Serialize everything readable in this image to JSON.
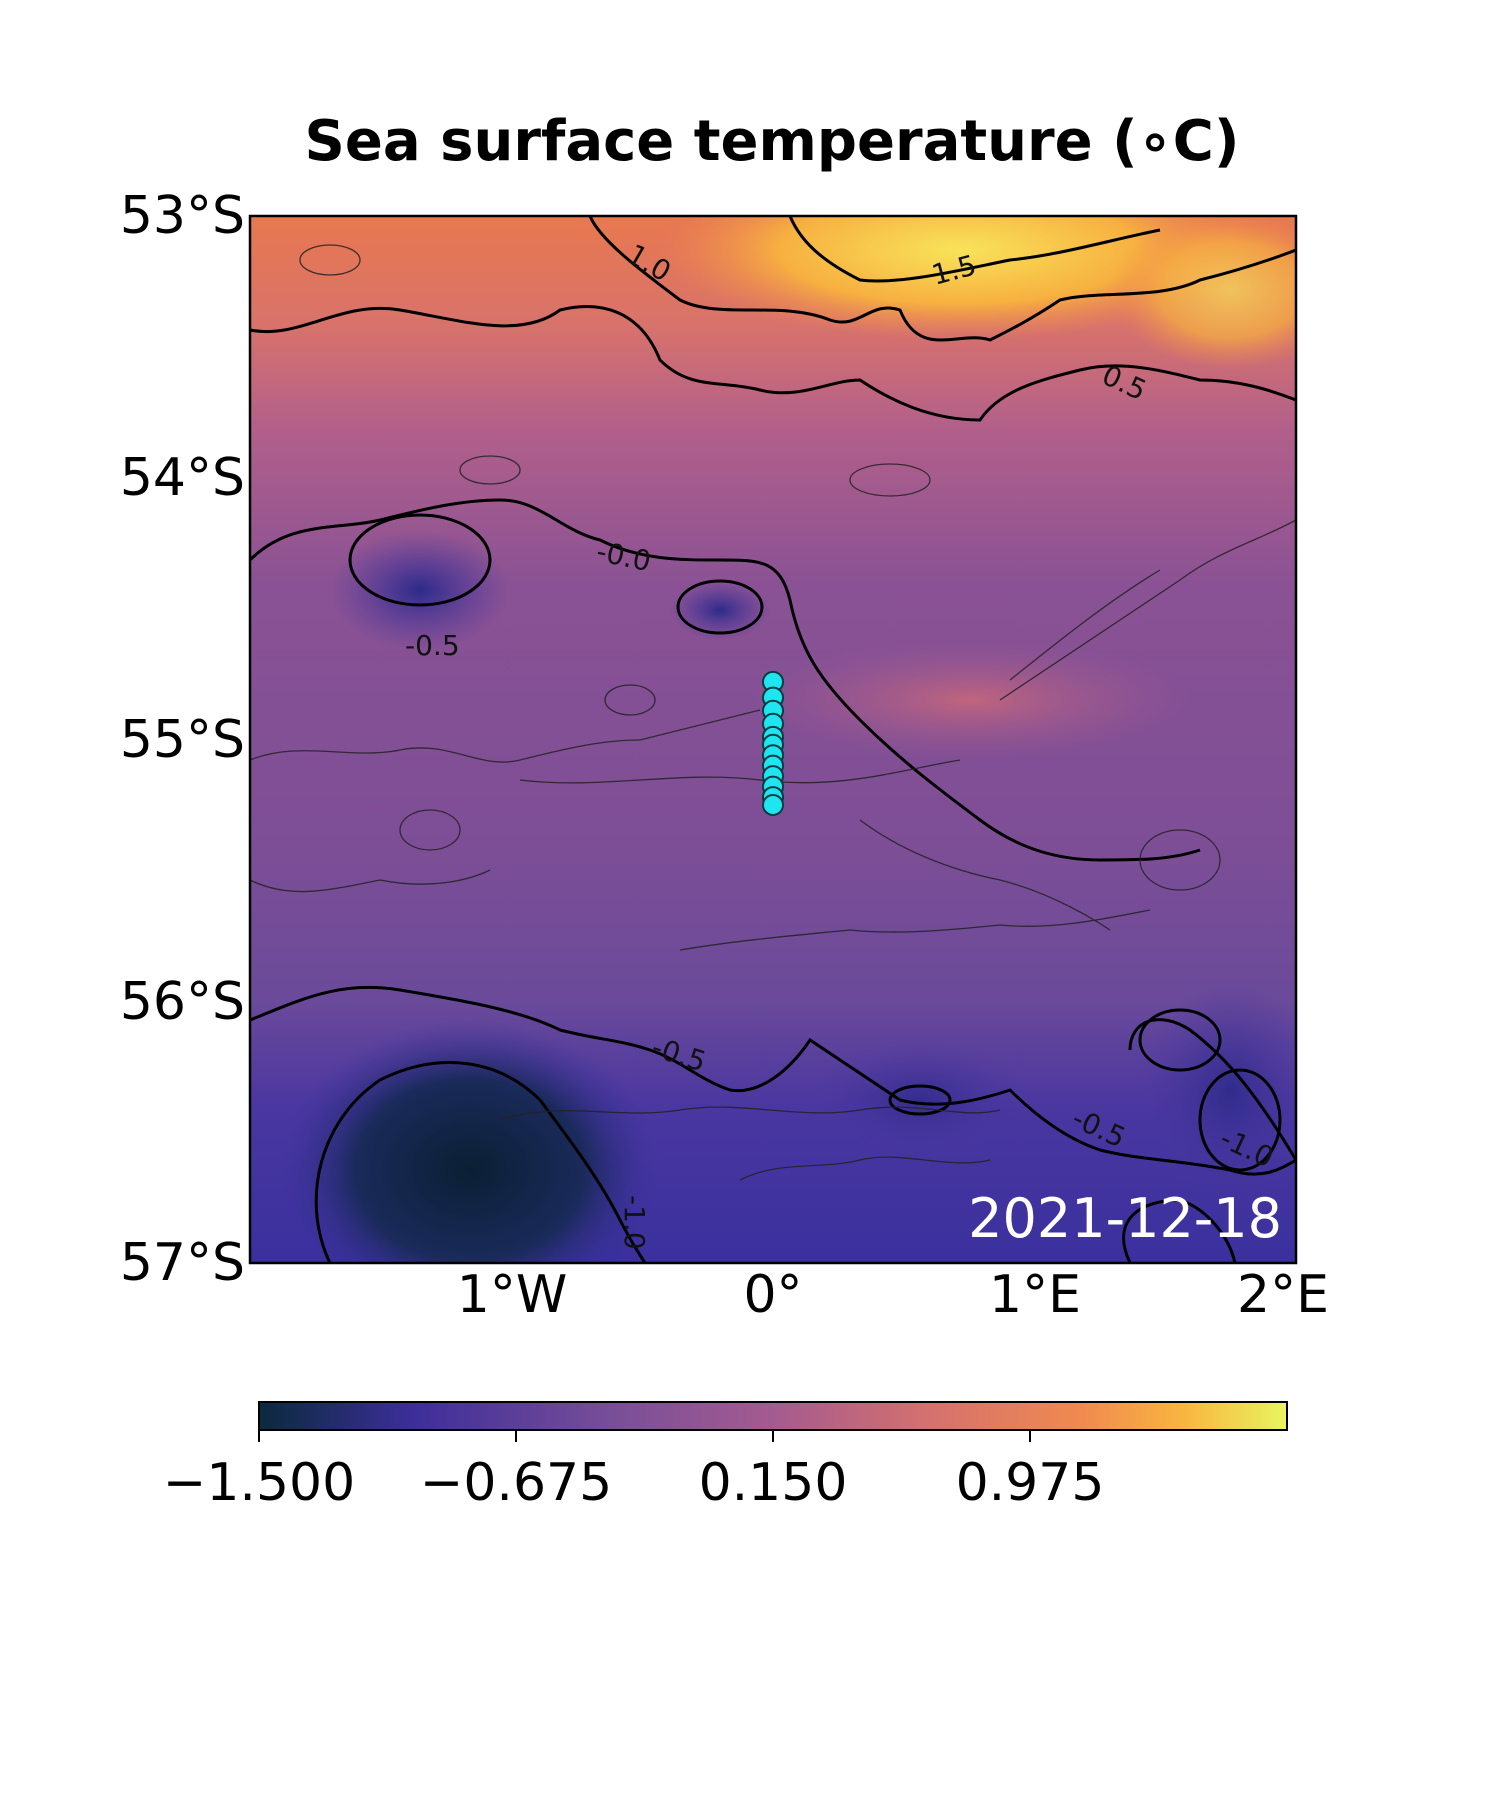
{
  "title": "Sea surface temperature (∘C)",
  "date": "2021-12-18",
  "map": {
    "lat_ticks": [
      "53°S",
      "54°S",
      "55°S",
      "56°S",
      "57°S"
    ],
    "lon_ticks": [
      "1°W",
      "0°",
      "1°E",
      "2°E"
    ],
    "extent": {
      "lon_min": -2.0,
      "lon_max": 2.0,
      "lat_min": -57.0,
      "lat_max": -53.0
    },
    "colormap": "plasma",
    "contour_labels": [
      "1.0",
      "1.5",
      "0.5",
      "-0.0",
      "-0.5",
      "-0.5",
      "-0.5",
      "-1.0",
      "-1.0"
    ]
  },
  "colorbar": {
    "ticks": [
      "−1.500",
      "−0.675",
      "0.150",
      "0.975"
    ],
    "vmin": -1.5,
    "vmax": 1.8,
    "colors": [
      "#0a2a3c",
      "#3d2e9a",
      "#7a4f98",
      "#a45b8f",
      "#d4706f",
      "#f08a50",
      "#f9b540",
      "#e8f560"
    ]
  },
  "chart_data": {
    "type": "scatter",
    "series": [
      {
        "marker_color": "#1fe5f0",
        "lon": [
          0.0,
          0.0,
          0.0,
          0.0,
          0.0,
          0.0,
          0.0,
          0.0,
          0.0,
          0.0,
          0.0,
          0.0
        ],
        "lat": [
          -54.78,
          -54.84,
          -54.89,
          -54.94,
          -54.99,
          -55.02,
          -55.06,
          -55.1,
          -55.14,
          -55.18,
          -55.22,
          -55.25
        ]
      }
    ]
  }
}
